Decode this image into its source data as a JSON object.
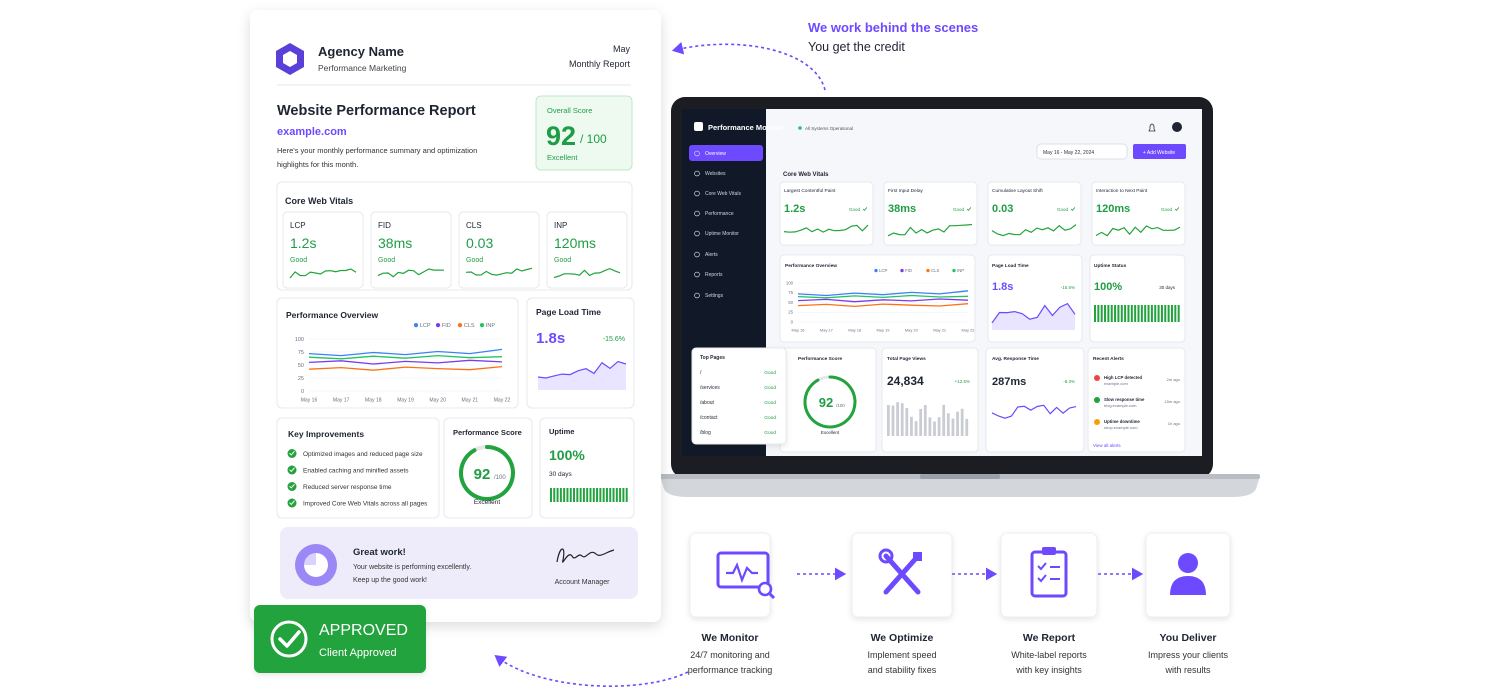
{
  "tagline": {
    "line1": "We work behind the scenes",
    "line2": "You get the credit"
  },
  "report": {
    "agency": "Agency Name",
    "agency_sub": "Performance Marketing",
    "month": "May",
    "period": "Monthly Report",
    "title": "Website Performance Report",
    "site": "example.com",
    "description": [
      "Here's your monthly performance summary and optimization",
      "highlights for this month."
    ],
    "overall": {
      "label": "Overall Score",
      "score": 92,
      "max": "/ 100",
      "rating": "Excellent"
    },
    "vitals": {
      "title": "Core Web Vitals",
      "items": [
        {
          "label": "LCP",
          "value": "1.2s",
          "status": "Good"
        },
        {
          "label": "FID",
          "value": "38ms",
          "status": "Good"
        },
        {
          "label": "CLS",
          "value": "0.03",
          "status": "Good"
        },
        {
          "label": "INP",
          "value": "120ms",
          "status": "Good"
        }
      ]
    },
    "performance_overview": {
      "type": "line",
      "title": "Performance Overview",
      "categories": [
        "May 16",
        "May 17",
        "May 18",
        "May 19",
        "May 20",
        "May 21",
        "May 22"
      ],
      "series": [
        {
          "name": "LCP",
          "color": "#3b82f6",
          "values": [
            72,
            68,
            74,
            70,
            76,
            72,
            80
          ]
        },
        {
          "name": "FID",
          "color": "#7c3aed",
          "values": [
            55,
            58,
            52,
            57,
            54,
            59,
            56
          ]
        },
        {
          "name": "CLS",
          "color": "#f97316",
          "values": [
            42,
            45,
            40,
            46,
            43,
            41,
            47
          ]
        },
        {
          "name": "INP",
          "color": "#22c55e",
          "values": [
            65,
            62,
            67,
            63,
            68,
            64,
            66
          ]
        }
      ],
      "ylim": [
        0,
        100
      ],
      "yticks": [
        0,
        25,
        50,
        75,
        100
      ]
    },
    "page_load": {
      "title": "Page Load Time",
      "value": "1.8s",
      "change": "-15.6%"
    },
    "improvements": {
      "title": "Key Improvements",
      "items": [
        "Optimized images and reduced page size",
        "Enabled caching and minified assets",
        "Reduced server response time",
        "Improved Core Web Vitals across all pages"
      ]
    },
    "performance_score": {
      "title": "Performance Score",
      "score": 92,
      "max": "/100",
      "rating": "Excellent"
    },
    "uptime": {
      "title": "Uptime",
      "value": "100%",
      "period": "30 days"
    },
    "note": {
      "title": "Great work!",
      "lines": [
        "Your website is performing excellently.",
        "Keep up the good work!"
      ],
      "signer": "Account Manager"
    }
  },
  "badge": {
    "title": "APPROVED",
    "subtitle": "Client Approved"
  },
  "dashboard": {
    "brand": "Performance Monitor",
    "status": "All Systems Operational",
    "menu": [
      "Overview",
      "Websites",
      "Core Web Vitals",
      "Performance",
      "Uptime Monitor",
      "Alerts",
      "Reports",
      "Settings"
    ],
    "date_range": "May 16 - May 22, 2024",
    "add_button": "+ Add Website",
    "vitals_title": "Core Web Vitals",
    "vitals": [
      {
        "label": "Largest Contentful Paint",
        "value": "1.2s",
        "status": "Good"
      },
      {
        "label": "First Input Delay",
        "value": "38ms",
        "status": "Good"
      },
      {
        "label": "Cumulative Layout Shift",
        "value": "0.03",
        "status": "Good"
      },
      {
        "label": "Interaction to Next Paint",
        "value": "120ms",
        "status": "Good"
      }
    ],
    "performance_overview": {
      "type": "line",
      "title": "Performance Overview",
      "categories": [
        "May 16",
        "May 17",
        "May 18",
        "May 19",
        "May 20",
        "May 21",
        "May 22"
      ],
      "series": [
        {
          "name": "LCP",
          "color": "#3b82f6",
          "values": [
            72,
            68,
            74,
            70,
            76,
            72,
            80
          ]
        },
        {
          "name": "FID",
          "color": "#7c3aed",
          "values": [
            55,
            58,
            52,
            57,
            54,
            59,
            56
          ]
        },
        {
          "name": "CLS",
          "color": "#f97316",
          "values": [
            42,
            45,
            40,
            46,
            43,
            41,
            47
          ]
        },
        {
          "name": "INP",
          "color": "#22c55e",
          "values": [
            65,
            62,
            67,
            63,
            68,
            64,
            66
          ]
        }
      ],
      "ylim": [
        0,
        100
      ],
      "yticks": [
        0,
        25,
        50,
        75,
        100
      ]
    },
    "page_load": {
      "title": "Page Load Time",
      "value": "1.8s",
      "change": "-15.6%"
    },
    "uptime": {
      "title": "Uptime Status",
      "value": "100%",
      "period": "30 days"
    },
    "score": {
      "title": "Performance Score",
      "score": 92,
      "max": "/100",
      "rating": "Excellent"
    },
    "page_views": {
      "title": "Total Page Views",
      "value": "24,834",
      "change": "+12.5%"
    },
    "response": {
      "title": "Avg. Response Time",
      "value": "287ms",
      "change": "-8.3%"
    },
    "alerts": {
      "title": "Recent Alerts",
      "items": [
        {
          "title": "High LCP detected",
          "site": "example.com",
          "time": "2m ago"
        },
        {
          "title": "Slow response time",
          "site": "blog.example.com",
          "time": "15m ago"
        },
        {
          "title": "Uptime downtime",
          "site": "shop.example.com",
          "time": "1h ago"
        }
      ],
      "link": "View all alerts"
    },
    "top_pages": {
      "title": "Top Pages",
      "rows": [
        {
          "page": "/",
          "status": "Good"
        },
        {
          "page": "/services",
          "status": "Good"
        },
        {
          "page": "/about",
          "status": "Good"
        },
        {
          "page": "/contact",
          "status": "Good"
        },
        {
          "page": "/blog",
          "status": "Good"
        }
      ]
    }
  },
  "steps": [
    {
      "title": "We Monitor",
      "lines": [
        "24/7 monitoring and",
        "performance tracking"
      ]
    },
    {
      "title": "We Optimize",
      "lines": [
        "Implement speed",
        "and stability fixes"
      ]
    },
    {
      "title": "We Report",
      "lines": [
        "White-label reports",
        "with key insights"
      ]
    },
    {
      "title": "You Deliver",
      "lines": [
        "Impress your clients",
        "with results"
      ]
    }
  ]
}
